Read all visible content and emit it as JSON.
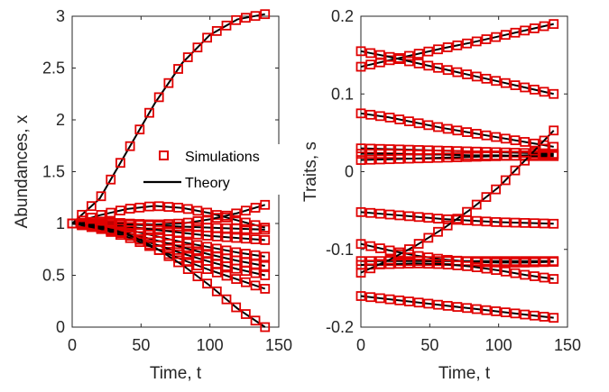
{
  "colors": {
    "simulation": "#e00000",
    "theory": "#000000",
    "axis": "#262626"
  },
  "legend": {
    "simulations_label": "Simulations",
    "theory_label": "Theory",
    "placement": "center"
  },
  "chart_data": [
    {
      "type": "line",
      "panel": "left",
      "xlabel": "Time, t",
      "ylabel": "Abundances, x",
      "xlim": [
        0,
        150
      ],
      "ylim": [
        0,
        3
      ],
      "xticks": [
        "0",
        "50",
        "100",
        "150"
      ],
      "yticks": [
        "0",
        "0.5",
        "1",
        "1.5",
        "2",
        "2.5",
        "3"
      ],
      "x_sim": [
        0,
        7,
        14,
        21,
        28,
        35,
        42,
        49,
        56,
        63,
        70,
        77,
        84,
        91,
        98,
        105,
        112,
        119,
        126,
        133,
        140
      ],
      "series": [
        {
          "x": [
            0,
            20,
            40,
            60,
            80,
            100,
            120,
            140
          ],
          "y": [
            1.0,
            1.24,
            1.7,
            2.16,
            2.55,
            2.82,
            2.97,
            3.02
          ]
        },
        {
          "x": [
            0,
            20,
            40,
            60,
            80,
            100,
            120,
            140
          ],
          "y": [
            1.0,
            1.08,
            1.14,
            1.17,
            1.15,
            1.1,
            1.03,
            0.96
          ]
        },
        {
          "x": [
            0,
            20,
            40,
            60,
            80,
            100,
            120,
            140
          ],
          "y": [
            1.0,
            1.02,
            1.0,
            0.99,
            1.0,
            1.04,
            1.1,
            1.18
          ]
        },
        {
          "x": [
            0,
            20,
            40,
            60,
            80,
            100,
            120,
            140
          ],
          "y": [
            1.0,
            1.0,
            0.99,
            0.98,
            0.97,
            0.96,
            0.95,
            0.94
          ]
        },
        {
          "x": [
            0,
            20,
            40,
            60,
            80,
            100,
            120,
            140
          ],
          "y": [
            1.0,
            0.99,
            0.97,
            0.94,
            0.91,
            0.88,
            0.86,
            0.84
          ]
        },
        {
          "x": [
            0,
            20,
            40,
            60,
            80,
            100,
            120,
            140
          ],
          "y": [
            1.0,
            0.98,
            0.94,
            0.88,
            0.82,
            0.77,
            0.72,
            0.68
          ]
        },
        {
          "x": [
            0,
            20,
            40,
            60,
            80,
            100,
            120,
            140
          ],
          "y": [
            1.0,
            0.97,
            0.91,
            0.84,
            0.77,
            0.7,
            0.64,
            0.59
          ]
        },
        {
          "x": [
            0,
            20,
            40,
            60,
            80,
            100,
            120,
            140
          ],
          "y": [
            1.0,
            0.96,
            0.89,
            0.8,
            0.71,
            0.63,
            0.56,
            0.5
          ]
        },
        {
          "x": [
            0,
            20,
            40,
            60,
            80,
            100,
            120,
            140
          ],
          "y": [
            1.0,
            0.95,
            0.87,
            0.76,
            0.65,
            0.55,
            0.46,
            0.37
          ]
        },
        {
          "x": [
            0,
            20,
            40,
            60,
            80,
            100,
            120,
            140
          ],
          "y": [
            1.0,
            0.97,
            0.9,
            0.77,
            0.6,
            0.4,
            0.18,
            0.0
          ]
        }
      ]
    },
    {
      "type": "line",
      "panel": "right",
      "xlabel": "Time, t",
      "ylabel": "Traits, s",
      "xlim": [
        0,
        150
      ],
      "ylim": [
        -0.2,
        0.2
      ],
      "xticks": [
        "0",
        "50",
        "100",
        "150"
      ],
      "yticks": [
        "-0.2",
        "-0.1",
        "0",
        "0.1",
        "0.2"
      ],
      "x_sim": [
        0,
        7,
        14,
        21,
        28,
        35,
        42,
        49,
        56,
        63,
        70,
        77,
        84,
        91,
        98,
        105,
        112,
        119,
        126,
        133,
        140
      ],
      "series": [
        {
          "x": [
            0,
            20,
            40,
            60,
            80,
            100,
            120,
            140
          ],
          "y": [
            0.135,
            0.143,
            0.151,
            0.159,
            0.166,
            0.174,
            0.182,
            0.19
          ]
        },
        {
          "x": [
            0,
            20,
            40,
            60,
            80,
            100,
            120,
            140
          ],
          "y": [
            0.155,
            0.148,
            0.14,
            0.132,
            0.124,
            0.116,
            0.108,
            0.1
          ]
        },
        {
          "x": [
            0,
            20,
            40,
            60,
            80,
            100,
            120,
            140
          ],
          "y": [
            0.075,
            0.07,
            0.063,
            0.056,
            0.05,
            0.044,
            0.038,
            0.032
          ]
        },
        {
          "x": [
            0,
            20,
            40,
            60,
            80,
            100,
            120,
            140
          ],
          "y": [
            0.03,
            0.029,
            0.028,
            0.027,
            0.026,
            0.025,
            0.024,
            0.023
          ]
        },
        {
          "x": [
            0,
            20,
            40,
            60,
            80,
            100,
            120,
            140
          ],
          "y": [
            0.023,
            0.023,
            0.022,
            0.022,
            0.021,
            0.021,
            0.02,
            0.02
          ]
        },
        {
          "x": [
            0,
            20,
            40,
            60,
            80,
            100,
            120,
            140
          ],
          "y": [
            0.015,
            0.016,
            0.017,
            0.018,
            0.019,
            0.02,
            0.021,
            0.022
          ]
        },
        {
          "x": [
            0,
            20,
            40,
            60,
            80,
            100,
            120,
            140
          ],
          "y": [
            -0.052,
            -0.055,
            -0.058,
            -0.061,
            -0.063,
            -0.065,
            -0.066,
            -0.067
          ]
        },
        {
          "x": [
            0,
            20,
            40,
            60,
            80,
            100,
            120,
            140
          ],
          "y": [
            -0.093,
            -0.101,
            -0.108,
            -0.113,
            -0.116,
            -0.117,
            -0.117,
            -0.116
          ]
        },
        {
          "x": [
            0,
            20,
            40,
            60,
            80,
            100,
            120,
            140
          ],
          "y": [
            -0.115,
            -0.115,
            -0.115,
            -0.115,
            -0.115,
            -0.115,
            -0.115,
            -0.115
          ]
        },
        {
          "x": [
            0,
            20,
            40,
            60,
            80,
            100,
            120,
            140
          ],
          "y": [
            -0.12,
            -0.119,
            -0.118,
            -0.119,
            -0.122,
            -0.127,
            -0.133,
            -0.138
          ]
        },
        {
          "x": [
            0,
            20,
            40,
            60,
            80,
            100,
            120,
            140
          ],
          "y": [
            -0.13,
            -0.114,
            -0.095,
            -0.073,
            -0.048,
            -0.02,
            0.016,
            0.053
          ]
        },
        {
          "x": [
            0,
            20,
            40,
            60,
            80,
            100,
            120,
            140
          ],
          "y": [
            -0.16,
            -0.164,
            -0.168,
            -0.172,
            -0.176,
            -0.18,
            -0.184,
            -0.188
          ]
        }
      ]
    }
  ]
}
